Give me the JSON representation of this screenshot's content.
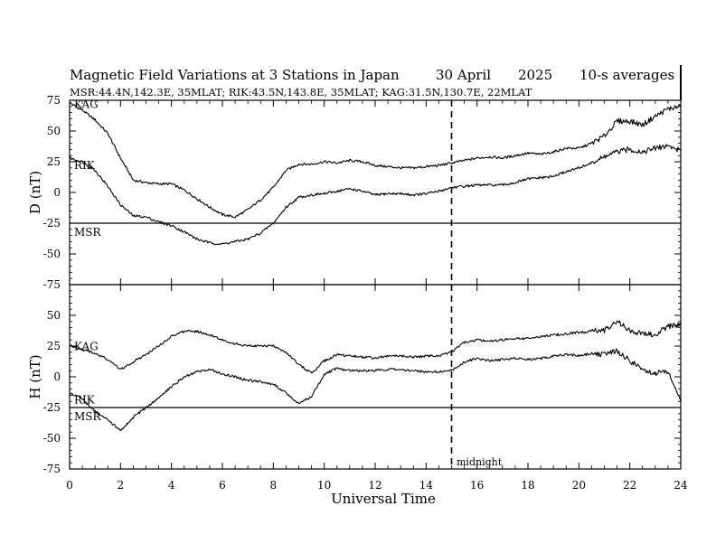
{
  "header": {
    "title": "Magnetic Field Variations at 3 Stations in Japan",
    "date": "30 April",
    "year": "2025",
    "averaging": "10-s averages",
    "stations": "MSR:44.4N,142.3E, 35MLAT;  RIK:43.5N,143.8E, 35MLAT;  KAG:31.5N,130.7E, 22MLAT"
  },
  "xaxis": {
    "label": "Universal Time",
    "ticks": [
      "0",
      "2",
      "4",
      "6",
      "8",
      "10",
      "12",
      "14",
      "16",
      "18",
      "20",
      "22",
      "24"
    ]
  },
  "midnight_label": "midnight",
  "chart_data": [
    {
      "type": "line",
      "component": "D",
      "ylabel": "D (nT)",
      "xlabel": "Universal Time",
      "xlim": [
        0,
        24
      ],
      "ylim": [
        -75,
        75
      ],
      "yticks": [
        "75",
        "50",
        "25",
        "0",
        "-25",
        "-50",
        "-75"
      ],
      "midnight_ut": 15,
      "series": [
        {
          "name": "KAG",
          "x": [
            0,
            0.5,
            1,
            1.5,
            2,
            2.5,
            3,
            3.5,
            4,
            4.5,
            5,
            5.5,
            6,
            6.5,
            7,
            7.5,
            8,
            8.5,
            9,
            9.5,
            10,
            10.5,
            11,
            11.5,
            12,
            12.5,
            13,
            13.5,
            14,
            14.5,
            15,
            15.5,
            16,
            16.5,
            17,
            17.5,
            18,
            18.5,
            19,
            19.5,
            20,
            20.5,
            21,
            21.5,
            22,
            22.5,
            23,
            23.5,
            24
          ],
          "values": [
            73,
            67,
            59,
            48,
            28,
            10,
            8,
            7,
            7,
            2,
            -5,
            -12,
            -18,
            -20,
            -14,
            -6,
            4,
            18,
            23,
            23,
            25,
            24,
            26,
            25,
            22,
            21,
            20,
            20,
            21,
            22,
            24,
            26,
            28,
            29,
            28,
            30,
            32,
            31,
            33,
            36,
            36,
            40,
            46,
            58,
            58,
            55,
            62,
            68,
            70
          ]
        },
        {
          "name": "RIK",
          "x": [
            0,
            0.5,
            1,
            1.5,
            2,
            2.5,
            3,
            3.5,
            4,
            4.5,
            5,
            5.5,
            6,
            6.5,
            7,
            7.5,
            8,
            8.5,
            9,
            9.5,
            10,
            10.5,
            11,
            11.5,
            12,
            12.5,
            13,
            13.5,
            14,
            14.5,
            15,
            15.5,
            16,
            16.5,
            17,
            17.5,
            18,
            18.5,
            19,
            19.5,
            20,
            20.5,
            21,
            21.5,
            22,
            22.5,
            23,
            23.5,
            24
          ],
          "values": [
            28,
            25,
            18,
            5,
            -10,
            -19,
            -20,
            -24,
            -27,
            -32,
            -38,
            -41,
            -42,
            -40,
            -38,
            -33,
            -25,
            -12,
            -4,
            -2,
            -1,
            1,
            3,
            1,
            -2,
            -1,
            -1,
            -2,
            -1,
            1,
            4,
            5,
            6,
            6,
            6,
            8,
            11,
            12,
            13,
            17,
            20,
            24,
            29,
            33,
            35,
            33,
            36,
            38,
            34
          ]
        }
      ]
    },
    {
      "type": "line",
      "component": "H",
      "ylabel": "H (nT)",
      "xlabel": "Universal Time",
      "xlim": [
        0,
        24
      ],
      "ylim": [
        -75,
        75
      ],
      "yticks": [
        "50",
        "25",
        "0",
        "-25",
        "-50",
        "-75"
      ],
      "midnight_ut": 15,
      "series": [
        {
          "name": "KAG",
          "x": [
            0,
            0.5,
            1,
            1.5,
            2,
            2.5,
            3,
            3.5,
            4,
            4.5,
            5,
            5.5,
            6,
            6.5,
            7,
            7.5,
            8,
            8.5,
            9,
            9.5,
            10,
            10.5,
            11,
            11.5,
            12,
            12.5,
            13,
            13.5,
            14,
            14.5,
            15,
            15.5,
            16,
            16.5,
            17,
            17.5,
            18,
            18.5,
            19,
            19.5,
            20,
            20.5,
            21,
            21.5,
            22,
            22.5,
            23,
            23.5,
            24
          ],
          "values": [
            26,
            22,
            19,
            14,
            6,
            12,
            18,
            25,
            33,
            37,
            37,
            34,
            30,
            27,
            25,
            25,
            25,
            20,
            10,
            3,
            13,
            18,
            17,
            16,
            15,
            17,
            17,
            16,
            17,
            17,
            20,
            28,
            30,
            29,
            30,
            31,
            31,
            33,
            34,
            35,
            36,
            37,
            38,
            45,
            38,
            35,
            34,
            41,
            42
          ]
        },
        {
          "name": "RIK",
          "x": [
            0,
            0.5,
            1,
            1.5,
            2,
            2.5,
            3,
            3.5,
            4,
            4.5,
            5,
            5.5,
            6,
            6.5,
            7,
            7.5,
            8,
            8.5,
            9,
            9.5,
            10,
            10.5,
            11,
            11.5,
            12,
            12.5,
            13,
            13.5,
            14,
            14.5,
            15,
            15.5,
            16,
            16.5,
            17,
            17.5,
            18,
            18.5,
            19,
            19.5,
            20,
            20.5,
            21,
            21.5,
            22,
            22.5,
            23,
            23.5,
            24
          ],
          "values": [
            -13,
            -18,
            -28,
            -35,
            -44,
            -33,
            -25,
            -17,
            -8,
            0,
            4,
            6,
            2,
            0,
            -3,
            -4,
            -6,
            -13,
            -22,
            -16,
            2,
            7,
            5,
            5,
            5,
            6,
            6,
            5,
            4,
            4,
            5,
            12,
            15,
            13,
            14,
            15,
            14,
            15,
            17,
            18,
            17,
            19,
            18,
            21,
            13,
            6,
            3,
            4,
            -20
          ]
        }
      ]
    }
  ]
}
